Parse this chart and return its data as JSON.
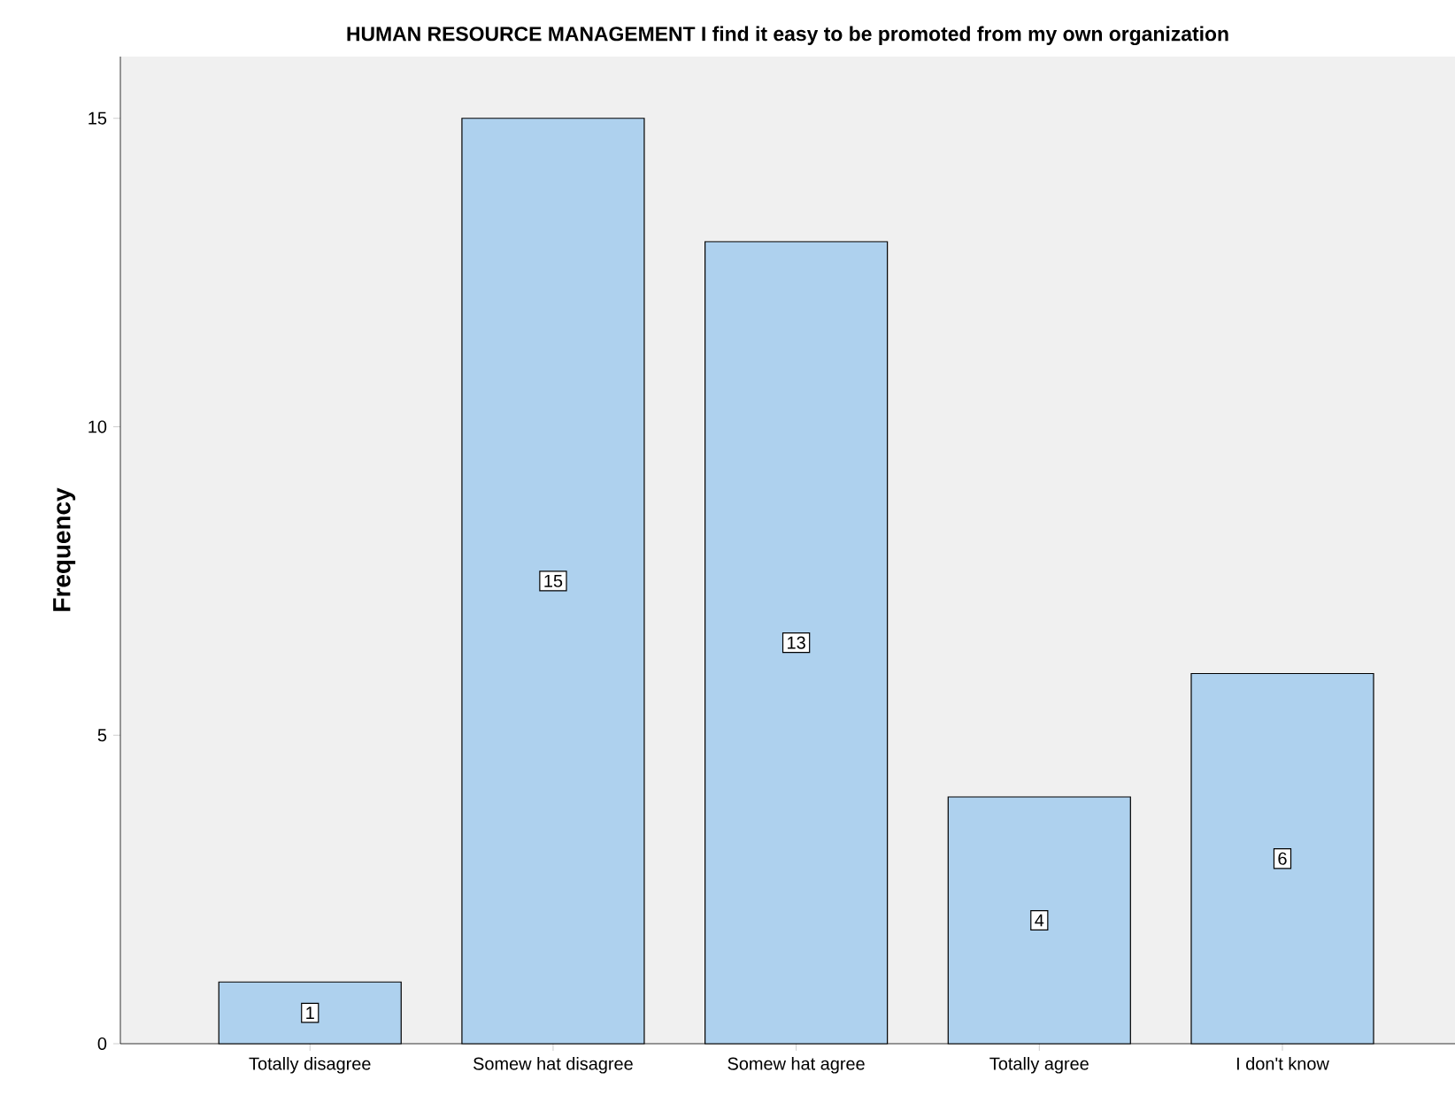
{
  "chart_data": {
    "type": "bar",
    "title": "HUMAN RESOURCE MANAGEMENT I find it easy to be promoted from my own organization",
    "ylabel": "Frequency",
    "categories": [
      "Totally disagree",
      "Somew hat disagree",
      "Somew hat agree",
      "Totally agree",
      "I don't know"
    ],
    "values": [
      1,
      15,
      13,
      4,
      6
    ],
    "color": "#aed1ee",
    "ylim": [
      0,
      16
    ],
    "yticks": [
      0,
      5,
      10,
      15
    ],
    "data_labels": true
  }
}
